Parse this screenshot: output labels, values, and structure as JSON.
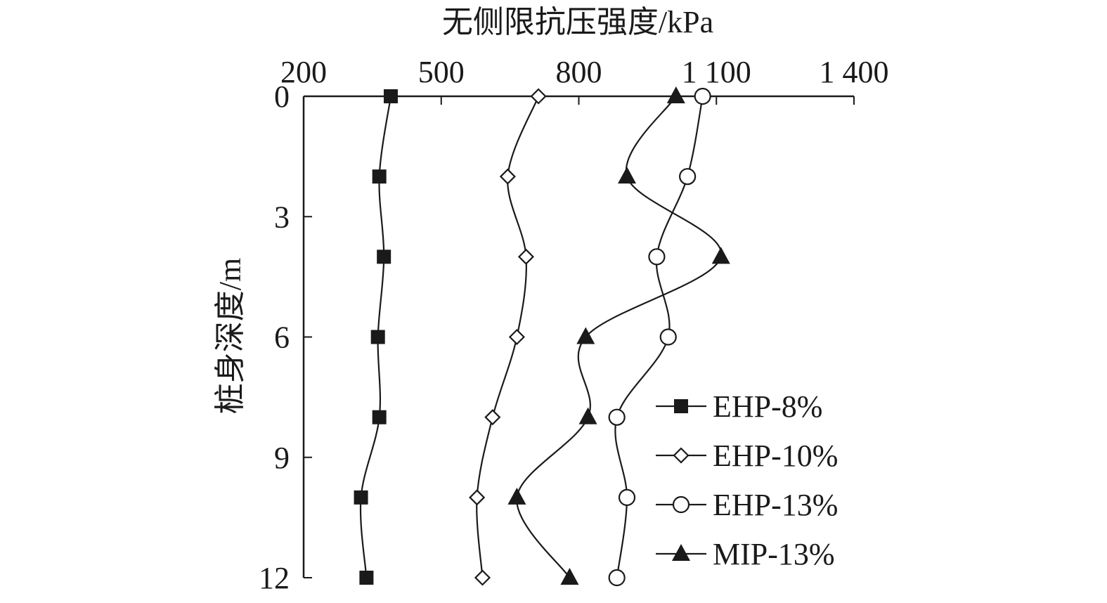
{
  "chart_data": {
    "type": "line",
    "xlabel": "无侧限抗压强度/kPa",
    "ylabel": "桩身深度/m",
    "xlim": [
      200,
      1400
    ],
    "ylim": [
      0,
      12
    ],
    "y_inverted": true,
    "x_axis_position": "top",
    "x_ticks": [
      200,
      500,
      800,
      1100,
      1400
    ],
    "x_tick_labels": [
      "200",
      "500",
      "800",
      "1 100",
      "1 400"
    ],
    "y_ticks": [
      0,
      3,
      6,
      9,
      12
    ],
    "y_tick_labels": [
      "0",
      "3",
      "6",
      "9",
      "12"
    ],
    "grid": false,
    "legend_position": "bottom-right",
    "series": [
      {
        "name": "EHP-8%",
        "marker": "filled-square",
        "x": [
          390,
          365,
          375,
          362,
          365,
          325,
          337
        ],
        "y": [
          0,
          2,
          4,
          6,
          8,
          10,
          12
        ]
      },
      {
        "name": "EHP-10%",
        "marker": "open-diamond",
        "x": [
          712,
          645,
          685,
          665,
          612,
          578,
          590
        ],
        "y": [
          0,
          2,
          4,
          6,
          8,
          10,
          12
        ]
      },
      {
        "name": "EHP-13%",
        "marker": "open-circle",
        "x": [
          1070,
          1037,
          970,
          995,
          883,
          905,
          883
        ],
        "y": [
          0,
          2,
          4,
          6,
          8,
          10,
          12
        ]
      },
      {
        "name": "MIP-13%",
        "marker": "filled-triangle",
        "x": [
          1012,
          905,
          1110,
          815,
          820,
          665,
          780
        ],
        "y": [
          0,
          2,
          4,
          6,
          8,
          10,
          12
        ]
      }
    ]
  }
}
